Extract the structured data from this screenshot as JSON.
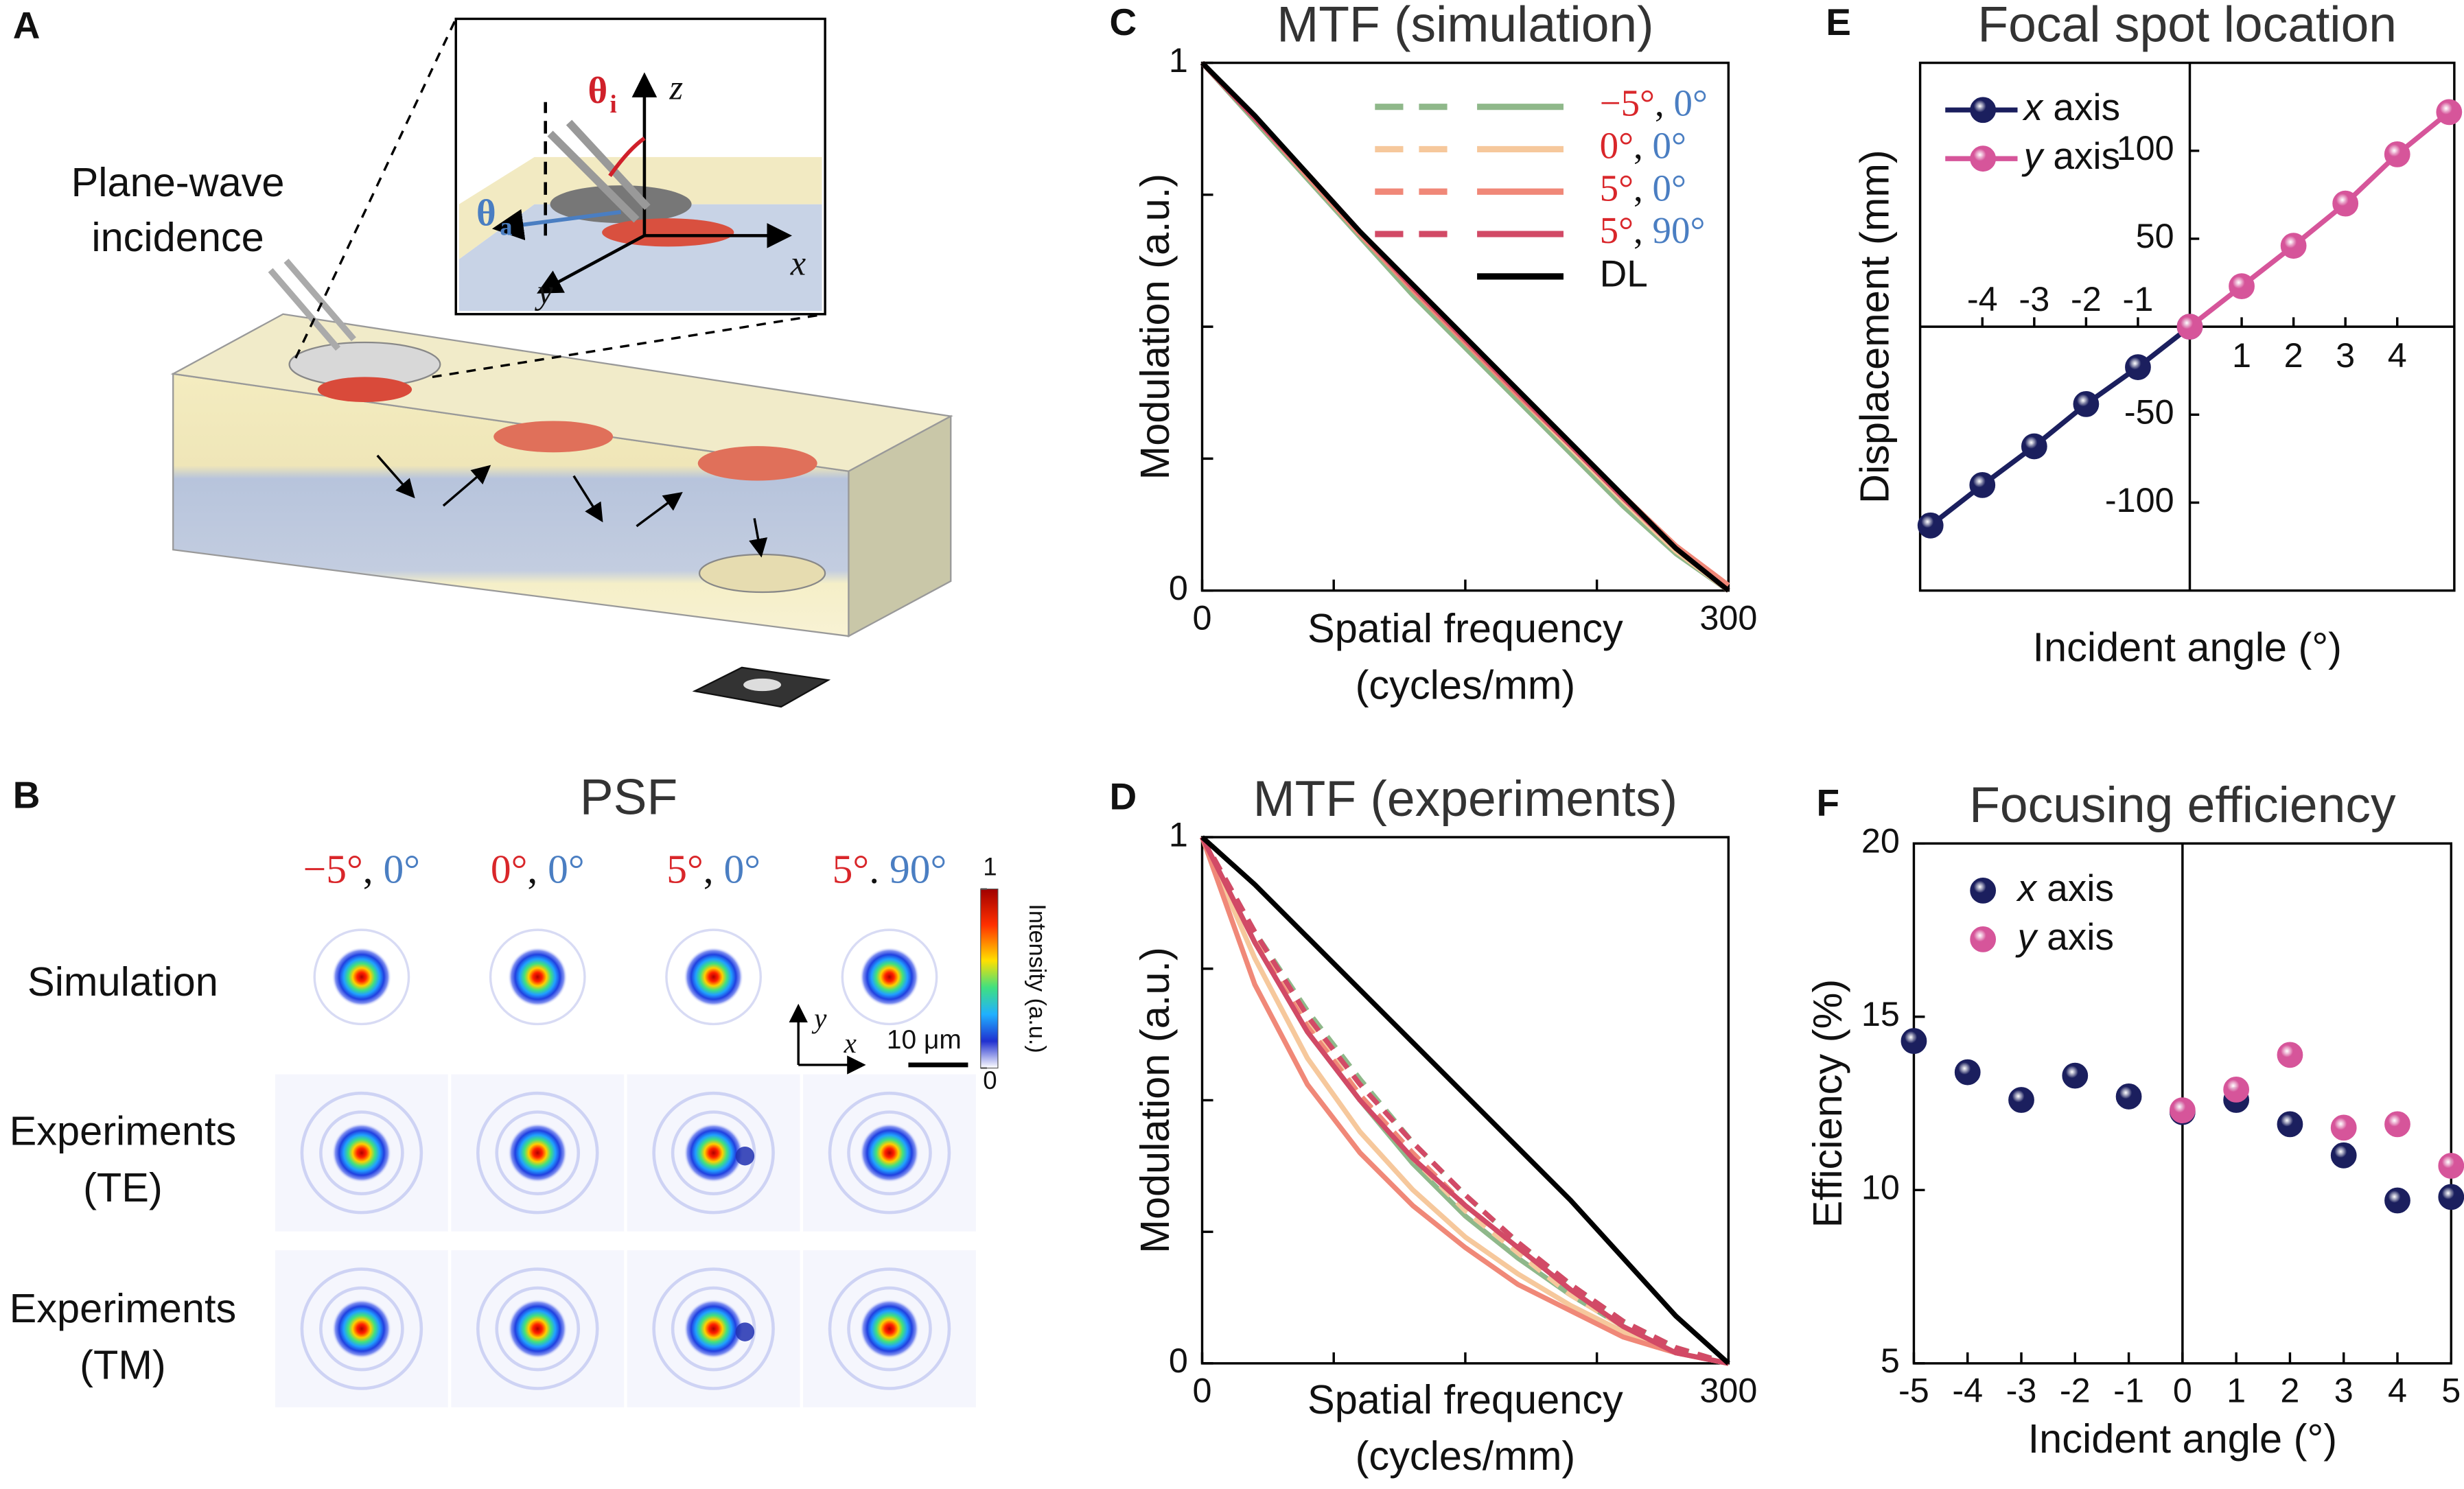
{
  "panel_a": {
    "label": "A",
    "incidence": [
      "Plane-wave",
      "incidence"
    ],
    "theta_i": [
      "θ",
      "i"
    ],
    "theta_a": [
      "θ",
      "a"
    ],
    "axes": {
      "x": "x",
      "y": "y",
      "z": "z"
    }
  },
  "panel_b": {
    "label": "B",
    "title": "PSF",
    "columns": [
      "−5°, 0°",
      "0°, 0°",
      "5°, 0°",
      "5°. 90°"
    ],
    "rows": [
      [
        "Simulation"
      ],
      [
        "Experiments",
        "(TE)"
      ],
      [
        "Experiments",
        "(TM)"
      ]
    ],
    "colorbar": {
      "title": "Intensity (a.u.)",
      "ticks": [
        0,
        1
      ]
    },
    "scale_bar": "10 μm",
    "axes": {
      "x": "x",
      "y": "y"
    }
  },
  "chart_data": [
    {
      "panel": "C",
      "type": "line",
      "title": "MTF (simulation)",
      "xlabel": [
        "Spatial frequency",
        "(cycles/mm)"
      ],
      "ylabel": "Modulation (a.u.)",
      "x": [
        0,
        30,
        60,
        90,
        120,
        150,
        180,
        210,
        240,
        270,
        300
      ],
      "xlim": [
        0,
        300
      ],
      "xticks": [
        0,
        300
      ],
      "minor_xticks": [
        75,
        150,
        225
      ],
      "ylim": [
        0,
        1
      ],
      "yticks": [
        0,
        1
      ],
      "minor_yticks": [
        0.25,
        0.5,
        0.75
      ],
      "legend": "upper right",
      "series": [
        {
          "name": "−5°, 0°",
          "color": "#8fb88a",
          "legend_symbol": "dashed-solid",
          "values": [
            1,
            0.89,
            0.78,
            0.67,
            0.56,
            0.46,
            0.36,
            0.26,
            0.16,
            0.07,
            0
          ]
        },
        {
          "name": "0°, 0°",
          "color": "#f6c89c",
          "legend_symbol": "dashed-solid",
          "values": [
            1,
            0.895,
            0.785,
            0.675,
            0.57,
            0.47,
            0.37,
            0.27,
            0.17,
            0.075,
            0
          ]
        },
        {
          "name": "5°, 0°",
          "color": "#f08878",
          "legend_symbol": "dashed-solid",
          "values": [
            1,
            0.895,
            0.785,
            0.675,
            0.57,
            0.47,
            0.37,
            0.275,
            0.18,
            0.085,
            0.01
          ]
        },
        {
          "name": "5°, 90°",
          "color": "#d24a66",
          "legend_symbol": "dashed-solid",
          "values": [
            1,
            0.895,
            0.79,
            0.68,
            0.575,
            0.475,
            0.375,
            0.275,
            0.175,
            0.08,
            0
          ]
        },
        {
          "name": "DL",
          "color": "#000000",
          "legend_symbol": "solid",
          "values": [
            1,
            0.9,
            0.79,
            0.68,
            0.58,
            0.48,
            0.38,
            0.28,
            0.18,
            0.08,
            0
          ]
        }
      ]
    },
    {
      "panel": "D",
      "type": "line",
      "title": "MTF (experiments)",
      "xlabel": [
        "Spatial frequency",
        "(cycles/mm)"
      ],
      "ylabel": "Modulation (a.u.)",
      "x": [
        0,
        30,
        60,
        90,
        120,
        150,
        180,
        210,
        240,
        270,
        300
      ],
      "xlim": [
        0,
        300
      ],
      "xticks": [
        0,
        300
      ],
      "minor_xticks": [
        75,
        150,
        225
      ],
      "ylim": [
        0,
        1
      ],
      "yticks": [
        0,
        1
      ],
      "minor_yticks": [
        0.25,
        0.5,
        0.75
      ],
      "series": [
        {
          "color": "#8fb88a",
          "dash": true,
          "values": [
            1,
            0.82,
            0.67,
            0.54,
            0.42,
            0.32,
            0.23,
            0.15,
            0.08,
            0.03,
            0
          ]
        },
        {
          "color": "#8fb88a",
          "values": [
            1,
            0.8,
            0.63,
            0.5,
            0.38,
            0.28,
            0.2,
            0.13,
            0.07,
            0.02,
            0
          ]
        },
        {
          "color": "#f6c89c",
          "dash": true,
          "values": [
            1,
            0.81,
            0.65,
            0.51,
            0.39,
            0.29,
            0.21,
            0.13,
            0.07,
            0.02,
            0
          ]
        },
        {
          "color": "#f6c89c",
          "values": [
            1,
            0.77,
            0.58,
            0.44,
            0.33,
            0.24,
            0.17,
            0.11,
            0.06,
            0.02,
            0
          ]
        },
        {
          "color": "#f08878",
          "dash": true,
          "values": [
            1,
            0.8,
            0.64,
            0.51,
            0.4,
            0.3,
            0.22,
            0.14,
            0.07,
            0.02,
            0
          ]
        },
        {
          "color": "#f08878",
          "values": [
            1,
            0.72,
            0.53,
            0.4,
            0.3,
            0.22,
            0.15,
            0.1,
            0.05,
            0.02,
            0
          ]
        },
        {
          "color": "#d24a66",
          "dash": true,
          "values": [
            1,
            0.82,
            0.66,
            0.53,
            0.42,
            0.32,
            0.23,
            0.15,
            0.08,
            0.03,
            0
          ]
        },
        {
          "color": "#d24a66",
          "values": [
            1,
            0.8,
            0.63,
            0.5,
            0.39,
            0.3,
            0.22,
            0.14,
            0.07,
            0.02,
            0
          ]
        },
        {
          "color": "#000000",
          "values": [
            1,
            0.91,
            0.81,
            0.71,
            0.61,
            0.51,
            0.41,
            0.31,
            0.2,
            0.09,
            0
          ]
        }
      ]
    },
    {
      "panel": "E",
      "type": "line",
      "markers": true,
      "axes_cross": true,
      "title": "Focal spot location",
      "xlabel": "Incident angle (°)",
      "ylabel": "Displacement (mm)",
      "xlim": [
        -5.2,
        5.1
      ],
      "xticks": [
        -4,
        -3,
        -2,
        -1,
        1,
        2,
        3,
        4
      ],
      "ylim": [
        -150,
        150
      ],
      "yticks": [
        -100,
        -50,
        50,
        100
      ],
      "legend": "upper left",
      "series": [
        {
          "name": "x axis",
          "color": "#1b1f5e",
          "x": [
            -5,
            -4,
            -3,
            -2,
            -1,
            0
          ],
          "values": [
            -113,
            -90,
            -68,
            -44,
            -23,
            0
          ]
        },
        {
          "name": "y axis",
          "color": "#d6559a",
          "x": [
            0,
            1,
            2,
            3,
            4,
            5
          ],
          "values": [
            0,
            23,
            46,
            70,
            98,
            122
          ]
        }
      ]
    },
    {
      "panel": "F",
      "type": "scatter",
      "zero_line": true,
      "title": "Focusing efficiency",
      "xlabel": "Incident angle (°)",
      "ylabel": "Efficiency (%)",
      "xlim": [
        -5,
        5
      ],
      "xticks": [
        -5,
        -4,
        -3,
        -2,
        -1,
        0,
        1,
        2,
        3,
        4,
        5
      ],
      "ylim": [
        5,
        20
      ],
      "yticks": [
        5,
        10,
        15,
        20
      ],
      "legend": "upper left",
      "series": [
        {
          "name": "x axis",
          "color": "#1b1f5e",
          "x": [
            -5,
            -4,
            -3,
            -2,
            -1,
            0,
            1,
            2,
            3,
            4,
            5
          ],
          "values": [
            14.3,
            13.4,
            12.6,
            13.3,
            12.7,
            12.25,
            12.6,
            11.9,
            11.0,
            9.7,
            9.8
          ]
        },
        {
          "name": "y axis",
          "color": "#d6559a",
          "x": [
            0,
            1,
            2,
            3,
            4,
            5
          ],
          "values": [
            12.3,
            12.9,
            13.9,
            11.8,
            11.9,
            10.7
          ]
        }
      ]
    }
  ]
}
